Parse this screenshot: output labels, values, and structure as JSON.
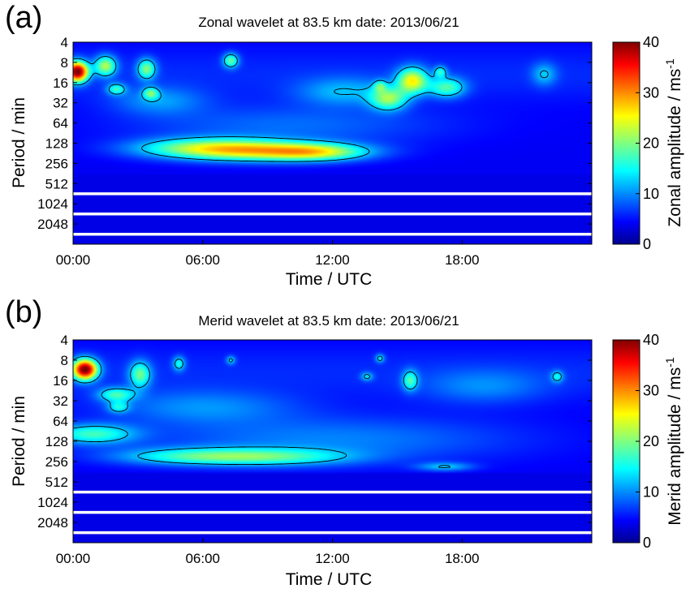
{
  "chart_data": [
    {
      "type": "heatmap",
      "panel_label": "(a)",
      "title": "Zonal wavelet at  83.5 km date: 2013/06/21",
      "xlabel": "Time / UTC",
      "ylabel": "Period / min",
      "x_ticks": [
        "00:00",
        "06:00",
        "12:00",
        "18:00"
      ],
      "x_range_hours": [
        0,
        24
      ],
      "y_scale": "log2",
      "y_ticks": [
        4,
        8,
        16,
        32,
        64,
        128,
        256,
        512,
        1024,
        2048
      ],
      "y_range": [
        4,
        4096
      ],
      "white_gaps_periods": [
        512,
        1024,
        2048
      ],
      "colorbar": {
        "label": "Zonal amplitude / ms",
        "label_superscript": "-1",
        "ticks": [
          0,
          10,
          20,
          30,
          40
        ],
        "range": [
          0,
          40
        ],
        "colormap": "jet"
      },
      "background_amplitude": 1.5,
      "features": [
        {
          "t": 0.2,
          "p": 11,
          "sx": 0.35,
          "sy": 0.35,
          "amp": 38
        },
        {
          "t": 1.5,
          "p": 9,
          "sx": 0.35,
          "sy": 0.35,
          "amp": 17
        },
        {
          "t": 3.4,
          "p": 10,
          "sx": 0.3,
          "sy": 0.35,
          "amp": 15
        },
        {
          "t": 3.6,
          "p": 23,
          "sx": 0.25,
          "sy": 0.2,
          "amp": 12
        },
        {
          "t": 2.0,
          "p": 20,
          "sx": 0.3,
          "sy": 0.2,
          "amp": 11
        },
        {
          "t": 7.3,
          "p": 7.5,
          "sx": 0.25,
          "sy": 0.25,
          "amp": 14
        },
        {
          "t": 6.2,
          "p": 150,
          "sx": 2.4,
          "sy": 0.35,
          "amp": 14
        },
        {
          "t": 9.0,
          "p": 170,
          "sx": 2.8,
          "sy": 0.35,
          "amp": 16
        },
        {
          "t": 11.3,
          "p": 175,
          "sx": 1.6,
          "sy": 0.28,
          "amp": 12
        },
        {
          "t": 14.6,
          "p": 28,
          "sx": 0.6,
          "sy": 0.4,
          "amp": 15
        },
        {
          "t": 15.7,
          "p": 15,
          "sx": 0.5,
          "sy": 0.45,
          "amp": 20
        },
        {
          "t": 17.3,
          "p": 19,
          "sx": 0.6,
          "sy": 0.35,
          "amp": 13
        },
        {
          "t": 14.2,
          "p": 18,
          "sx": 0.2,
          "sy": 0.2,
          "amp": 9
        },
        {
          "t": 17.0,
          "p": 11,
          "sx": 0.2,
          "sy": 0.2,
          "amp": 10
        },
        {
          "t": 12.5,
          "p": 22,
          "sx": 1.5,
          "sy": 0.5,
          "amp": 7
        },
        {
          "t": 4.0,
          "p": 30,
          "sx": 1.5,
          "sy": 0.5,
          "amp": 6
        },
        {
          "t": 21.8,
          "p": 12,
          "sx": 0.4,
          "sy": 0.4,
          "amp": 7
        },
        {
          "t": 10.0,
          "p": 70,
          "sx": 5.0,
          "sy": 0.7,
          "amp": 5
        }
      ]
    },
    {
      "type": "heatmap",
      "panel_label": "(b)",
      "title": "Merid wavelet at  83.5 km date: 2013/06/21",
      "xlabel": "Time / UTC",
      "ylabel": "Period / min",
      "x_ticks": [
        "00:00",
        "06:00",
        "12:00",
        "18:00"
      ],
      "x_range_hours": [
        0,
        24
      ],
      "y_scale": "log2",
      "y_ticks": [
        4,
        8,
        16,
        32,
        64,
        128,
        256,
        512,
        1024,
        2048
      ],
      "y_range": [
        4,
        4096
      ],
      "white_gaps_periods": [
        512,
        1024,
        2048
      ],
      "colorbar": {
        "label": "Merid amplitude / ms",
        "label_superscript": "-1",
        "ticks": [
          0,
          10,
          20,
          30,
          40
        ],
        "range": [
          0,
          40
        ],
        "colormap": "jet"
      },
      "background_amplitude": 1.5,
      "features": [
        {
          "t": 0.55,
          "p": 11,
          "sx": 0.4,
          "sy": 0.35,
          "amp": 38
        },
        {
          "t": 3.1,
          "p": 13,
          "sx": 0.35,
          "sy": 0.45,
          "amp": 14
        },
        {
          "t": 2.0,
          "p": 26,
          "sx": 0.6,
          "sy": 0.25,
          "amp": 12
        },
        {
          "t": 2.1,
          "p": 40,
          "sx": 0.35,
          "sy": 0.2,
          "amp": 9
        },
        {
          "t": 4.9,
          "p": 9,
          "sx": 0.2,
          "sy": 0.25,
          "amp": 10
        },
        {
          "t": 0.9,
          "p": 100,
          "sx": 1.4,
          "sy": 0.35,
          "amp": 13
        },
        {
          "t": 5.5,
          "p": 215,
          "sx": 2.6,
          "sy": 0.3,
          "amp": 11
        },
        {
          "t": 9.5,
          "p": 220,
          "sx": 2.6,
          "sy": 0.3,
          "amp": 10
        },
        {
          "t": 17.2,
          "p": 305,
          "sx": 0.9,
          "sy": 0.15,
          "amp": 8
        },
        {
          "t": 15.6,
          "p": 16,
          "sx": 0.25,
          "sy": 0.35,
          "amp": 12
        },
        {
          "t": 14.2,
          "p": 7.5,
          "sx": 0.15,
          "sy": 0.15,
          "amp": 9
        },
        {
          "t": 7.3,
          "p": 8,
          "sx": 0.15,
          "sy": 0.15,
          "amp": 8
        },
        {
          "t": 13.6,
          "p": 14,
          "sx": 0.2,
          "sy": 0.15,
          "amp": 8
        },
        {
          "t": 22.4,
          "p": 14,
          "sx": 0.2,
          "sy": 0.2,
          "amp": 9
        },
        {
          "t": 6.0,
          "p": 40,
          "sx": 3.0,
          "sy": 0.6,
          "amp": 6
        },
        {
          "t": 12.0,
          "p": 120,
          "sx": 6.0,
          "sy": 0.8,
          "amp": 6
        },
        {
          "t": 19.0,
          "p": 20,
          "sx": 2.0,
          "sy": 0.6,
          "amp": 5
        }
      ]
    }
  ]
}
